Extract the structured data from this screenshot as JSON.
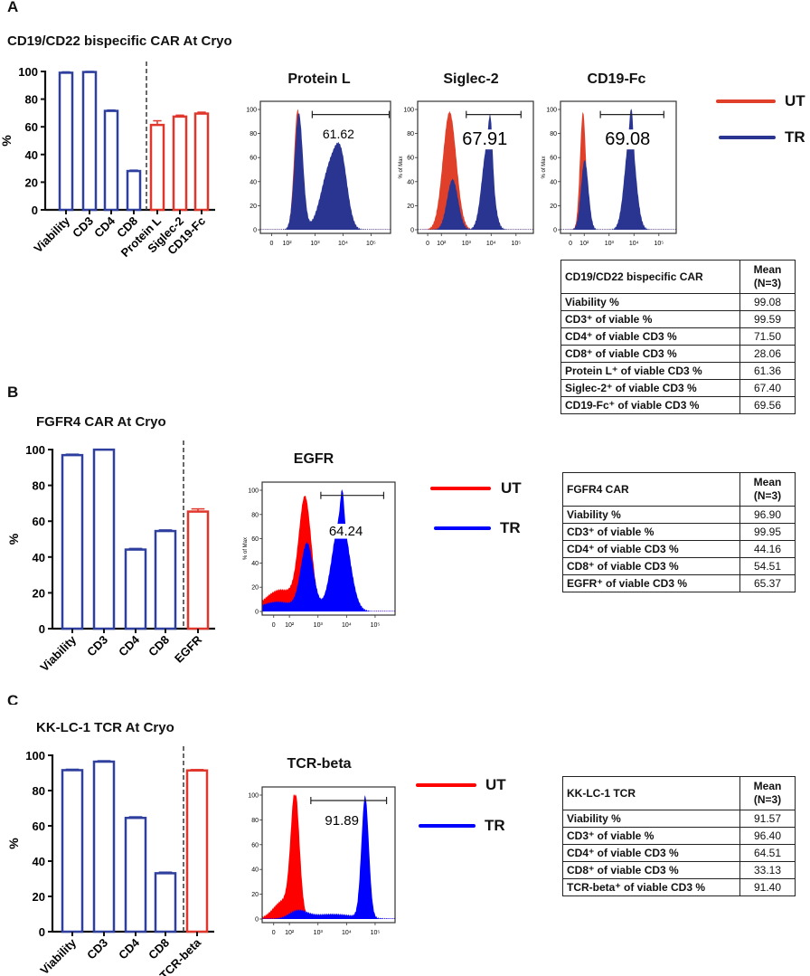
{
  "panels": [
    {
      "letter": "A",
      "title": "CD19/CD22 bispecific CAR At Cryo",
      "legend": {
        "ut": "UT",
        "tr": "TR"
      },
      "table": {
        "header": "CD19/CD22 bispecific CAR",
        "mean_header_1": "Mean",
        "mean_header_2": "(N=3)",
        "rows": [
          [
            "Viability %",
            "99.08"
          ],
          [
            "CD3⁺ of viable %",
            "99.59"
          ],
          [
            "CD4⁺ of viable CD3 %",
            "71.50"
          ],
          [
            "CD8⁺ of viable CD3 %",
            "28.06"
          ],
          [
            "Protein L⁺ of viable CD3 %",
            "61.36"
          ],
          [
            "Siglec-2⁺ of viable CD3 %",
            "67.40"
          ],
          [
            "CD19-Fc⁺ of viable CD3 %",
            "69.56"
          ]
        ]
      }
    },
    {
      "letter": "B",
      "title": "FGFR4 CAR At Cryo",
      "legend": {
        "ut": "UT",
        "tr": "TR"
      },
      "table": {
        "header": "FGFR4 CAR",
        "mean_header_1": "Mean",
        "mean_header_2": "(N=3)",
        "rows": [
          [
            "Viability %",
            "96.90"
          ],
          [
            "CD3⁺ of viable %",
            "99.95"
          ],
          [
            "CD4⁺ of viable CD3 %",
            "44.16"
          ],
          [
            "CD8⁺ of viable CD3 %",
            "54.51"
          ],
          [
            "EGFR⁺ of viable CD3 %",
            "65.37"
          ]
        ]
      }
    },
    {
      "letter": "C",
      "title": "KK-LC-1 TCR  At Cryo",
      "legend": {
        "ut": "UT",
        "tr": "TR"
      },
      "table": {
        "header": "KK-LC-1 TCR",
        "mean_header_1": "Mean",
        "mean_header_2": "(N=3)",
        "rows": [
          [
            "Viability %",
            "91.57"
          ],
          [
            "CD3⁺ of viable %",
            "96.40"
          ],
          [
            "CD4⁺ of viable CD3 %",
            "64.51"
          ],
          [
            "CD8⁺ of viable CD3 %",
            "33.13"
          ],
          [
            "TCR-beta⁺ of viable CD3 %",
            "91.40"
          ]
        ]
      }
    }
  ],
  "colors": {
    "phenotype_bar": "#2e3f9e",
    "transgene_bar": "#e0362c",
    "ut_A": "#e0402a",
    "tr_A": "#2a3592",
    "ut_BC": "#ff0000",
    "tr_BC": "#0000ff"
  },
  "chart_data": [
    {
      "type": "bar",
      "panel": "A",
      "ylabel": "%",
      "ylim": [
        0,
        100
      ],
      "yticks": [
        "0",
        "20",
        "40",
        "60",
        "80",
        "100"
      ],
      "categories": [
        "Viability",
        "CD3",
        "CD4",
        "CD8",
        "Protein L",
        "Siglec-2",
        "CD19-Fc"
      ],
      "values": [
        99.08,
        99.59,
        71.5,
        28.06,
        61.36,
        67.4,
        69.56
      ],
      "errors": [
        0.6,
        0.4,
        0.6,
        0.6,
        3.0,
        1.0,
        1.0
      ],
      "group": [
        "phenotype",
        "phenotype",
        "phenotype",
        "phenotype",
        "transgene",
        "transgene",
        "transgene"
      ],
      "divider_after": 3
    },
    {
      "type": "bar",
      "panel": "B",
      "ylabel": "%",
      "ylim": [
        0,
        100
      ],
      "yticks": [
        "0",
        "20",
        "40",
        "60",
        "80",
        "100"
      ],
      "categories": [
        "Viability",
        "CD3",
        "CD4",
        "CD8",
        "EGFR"
      ],
      "values": [
        96.9,
        99.95,
        44.16,
        54.51,
        65.37
      ],
      "errors": [
        0.5,
        0.1,
        0.6,
        0.6,
        1.5
      ],
      "group": [
        "phenotype",
        "phenotype",
        "phenotype",
        "phenotype",
        "transgene"
      ],
      "divider_after": 3
    },
    {
      "type": "bar",
      "panel": "C",
      "ylabel": "%",
      "ylim": [
        0,
        100
      ],
      "yticks": [
        "0",
        "20",
        "40",
        "60",
        "80",
        "100"
      ],
      "categories": [
        "Viability",
        "CD3",
        "CD4",
        "CD8",
        "TCR-beta"
      ],
      "values": [
        91.57,
        96.4,
        64.51,
        33.13,
        91.4
      ],
      "errors": [
        0.5,
        0.5,
        0.6,
        0.6,
        0.5
      ],
      "group": [
        "phenotype",
        "phenotype",
        "phenotype",
        "phenotype",
        "transgene"
      ],
      "divider_after": 3
    },
    {
      "type": "area",
      "panel": "A",
      "title": "Protein L",
      "ylabel": "",
      "gate_label": "61.62",
      "gate_range_log10": [
        2.9,
        5.65
      ],
      "xticks": [
        "0",
        "10²",
        "10³",
        "10⁴",
        "10⁵"
      ],
      "yticks": [
        "0",
        "20",
        "40",
        "60",
        "80",
        "100"
      ],
      "ylim": [
        0,
        100
      ],
      "series": [
        {
          "name": "UT",
          "peaks": [
            [
              2.38,
              0.13,
              100
            ]
          ]
        },
        {
          "name": "TR",
          "peaks": [
            [
              2.42,
              0.15,
              97
            ],
            [
              3.55,
              0.33,
              52
            ],
            [
              3.95,
              0.22,
              42
            ]
          ]
        }
      ]
    },
    {
      "type": "area",
      "panel": "A",
      "title": "Siglec-2",
      "ylabel": "% of Max",
      "gate_label": "67.91",
      "gate_range_log10": [
        3.0,
        5.2
      ],
      "xticks": [
        "0",
        "10²",
        "10³",
        "10⁴",
        "10⁵"
      ],
      "yticks": [
        "0",
        "20",
        "40",
        "60",
        "80",
        "100"
      ],
      "ylim": [
        0,
        100
      ],
      "series": [
        {
          "name": "UT",
          "peaks": [
            [
              2.33,
              0.27,
              98
            ]
          ]
        },
        {
          "name": "TR",
          "peaks": [
            [
              2.45,
              0.22,
              42
            ],
            [
              3.85,
              0.22,
              70
            ],
            [
              3.98,
              0.08,
              35
            ]
          ]
        }
      ]
    },
    {
      "type": "area",
      "panel": "A",
      "title": "CD19-Fc",
      "ylabel": "% of Max",
      "gate_label": "69.08",
      "gate_range_log10": [
        2.65,
        5.2
      ],
      "xticks": [
        "0",
        "10²",
        "10³",
        "10⁴",
        "10⁵"
      ],
      "yticks": [
        "0",
        "20",
        "40",
        "60",
        "80",
        "100"
      ],
      "ylim": [
        0,
        100
      ],
      "series": [
        {
          "name": "UT",
          "peaks": [
            [
              1.95,
              0.12,
              98
            ]
          ]
        },
        {
          "name": "TR",
          "peaks": [
            [
              2.02,
              0.15,
              58
            ],
            [
              3.85,
              0.22,
              80
            ],
            [
              3.9,
              0.06,
              25
            ]
          ]
        }
      ]
    },
    {
      "type": "area",
      "panel": "B",
      "title": "EGFR",
      "ylabel": "% of Max",
      "gate_label": "64.24",
      "gate_range_log10": [
        3.1,
        5.3
      ],
      "xticks": [
        "0",
        "10²",
        "10³",
        "10⁴",
        "10⁵"
      ],
      "yticks": [
        "0",
        "20",
        "40",
        "60",
        "80",
        "100"
      ],
      "ylim": [
        0,
        100
      ],
      "series": [
        {
          "name": "UT",
          "peaks": [
            [
              2.55,
              0.22,
              90
            ],
            [
              1.7,
              0.55,
              18
            ]
          ]
        },
        {
          "name": "TR",
          "peaks": [
            [
              2.62,
              0.22,
              55
            ],
            [
              3.8,
              0.3,
              78
            ],
            [
              3.85,
              0.06,
              25
            ],
            [
              1.6,
              0.6,
              8
            ]
          ]
        }
      ]
    },
    {
      "type": "area",
      "panel": "C",
      "title": "TCR-beta",
      "ylabel": "",
      "gate_label": "91.89",
      "gate_range_log10": [
        2.75,
        5.4
      ],
      "xticks": [
        "0",
        "10²",
        "10³",
        "10⁴",
        "10⁵"
      ],
      "yticks": [
        "0",
        "20",
        "40",
        "60",
        "80",
        "100"
      ],
      "ylim": [
        0,
        100
      ],
      "series": [
        {
          "name": "UT",
          "peaks": [
            [
              2.2,
              0.15,
              98
            ],
            [
              1.8,
              0.35,
              15
            ]
          ]
        },
        {
          "name": "TR",
          "peaks": [
            [
              4.65,
              0.13,
              98
            ],
            [
              2.3,
              0.3,
              6
            ],
            [
              3.5,
              0.8,
              4
            ]
          ]
        }
      ]
    }
  ]
}
